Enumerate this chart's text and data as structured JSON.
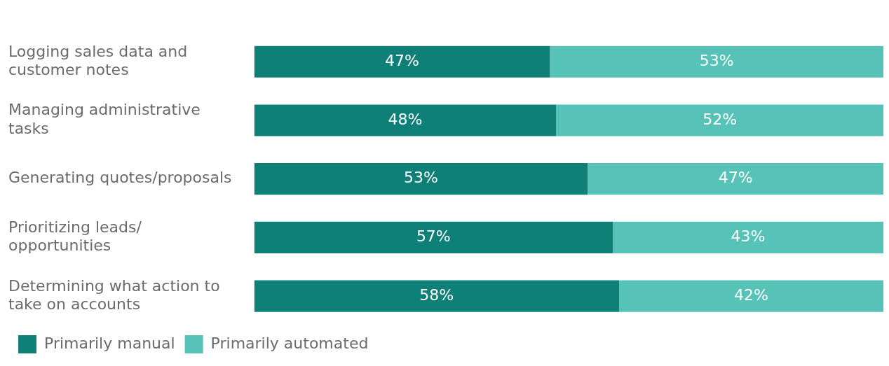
{
  "chart_data": {
    "type": "bar",
    "orientation": "horizontal",
    "stacked": true,
    "categories": [
      "Logging sales data and customer notes",
      "Managing administrative tasks",
      "Generating quotes/proposals",
      "Prioritizing leads/ opportunities",
      "Determining what action to take on accounts"
    ],
    "series": [
      {
        "name": "Primarily manual",
        "color": "#0e8078",
        "values": [
          47,
          48,
          53,
          57,
          58
        ],
        "value_labels": [
          "47%",
          "48%",
          "53%",
          "57%",
          "58%"
        ]
      },
      {
        "name": "Primarily automated",
        "color": "#57c2b8",
        "values": [
          53,
          52,
          47,
          43,
          42
        ],
        "value_labels": [
          "53%",
          "52%",
          "47%",
          "43%",
          "42%"
        ]
      }
    ],
    "xlim": [
      0,
      100
    ],
    "tick_labels": "y",
    "grid": false,
    "legend": "bottom left"
  }
}
